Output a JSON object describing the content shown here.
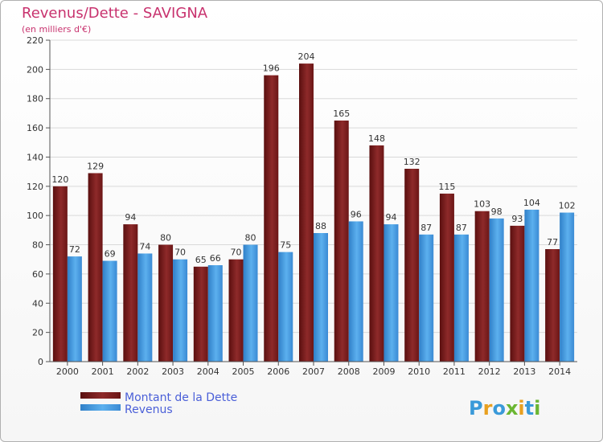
{
  "chart_data": {
    "type": "bar",
    "title": "Revenus/Dette - SAVIGNA",
    "subtitle": "(en milliers d'€)",
    "categories": [
      "2000",
      "2001",
      "2002",
      "2003",
      "2004",
      "2005",
      "2006",
      "2007",
      "2008",
      "2009",
      "2010",
      "2011",
      "2012",
      "2013",
      "2014"
    ],
    "series": [
      {
        "name": "Montant de la Dette",
        "color": "#8b2020",
        "values": [
          120,
          129,
          94,
          80,
          65,
          70,
          196,
          204,
          165,
          148,
          132,
          115,
          103,
          93,
          77
        ]
      },
      {
        "name": "Revenus",
        "color": "#4da3e6",
        "values": [
          72,
          69,
          74,
          70,
          66,
          80,
          75,
          88,
          96,
          94,
          87,
          87,
          98,
          104,
          102
        ]
      }
    ],
    "ylim": [
      0,
      220
    ],
    "yticks": [
      0,
      20,
      40,
      60,
      80,
      100,
      120,
      140,
      160,
      180,
      200,
      220
    ],
    "grid": true,
    "legend": "bottom-left"
  },
  "brand": {
    "logo_letters": [
      "P",
      "r",
      "o",
      "x",
      "i",
      "t",
      "i"
    ],
    "logo_colors": [
      "#3a9ad9",
      "#e8a020",
      "#3a9ad9",
      "#6bb632",
      "#e8a020",
      "#3a9ad9",
      "#6bb632"
    ]
  }
}
